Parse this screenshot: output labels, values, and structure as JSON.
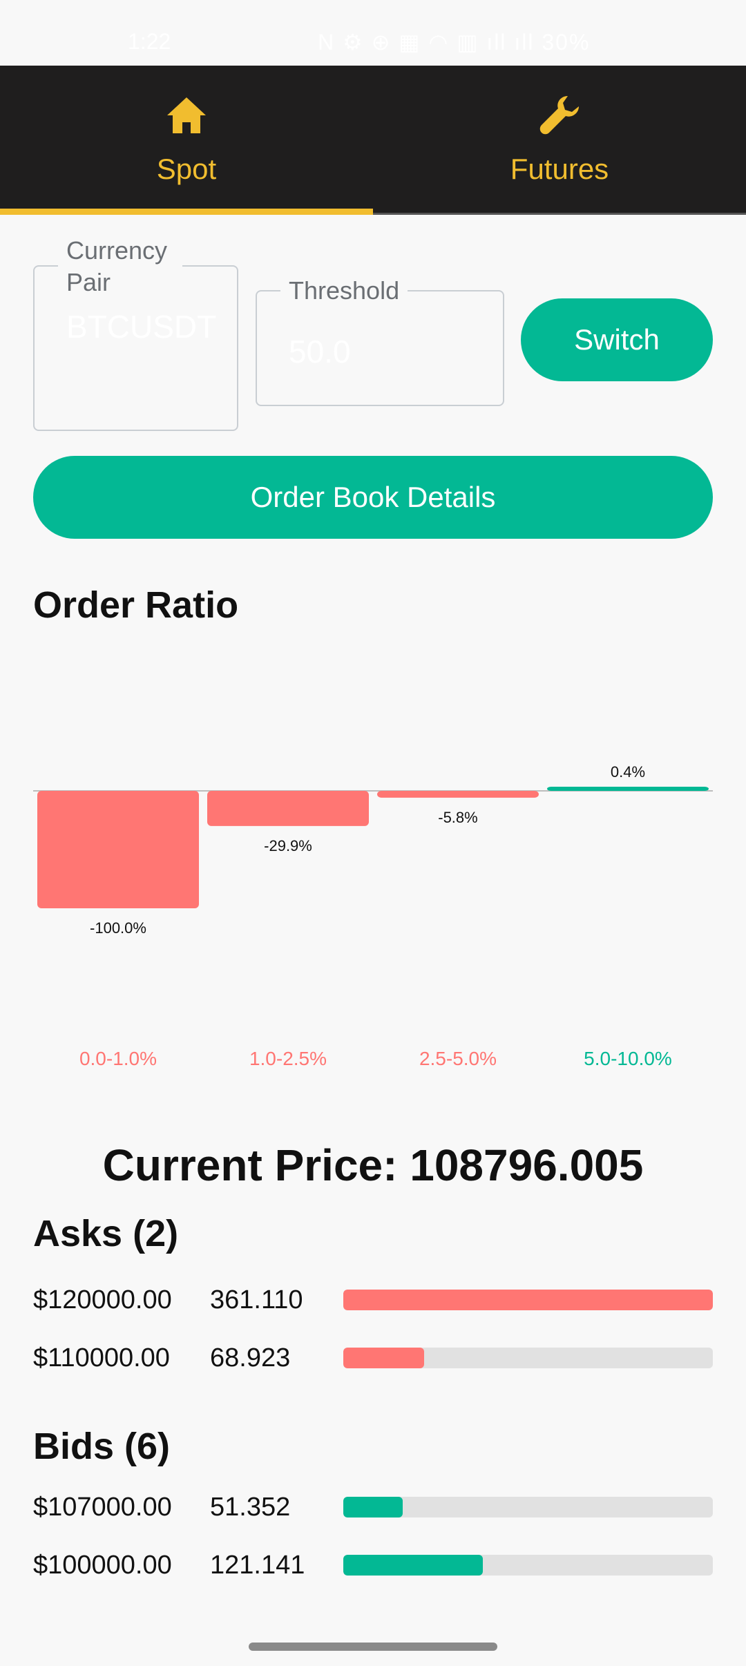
{
  "status_bar": {
    "time": "1:22",
    "indicators": "N ⚙ ⊕ ▦ ◠ ▥ ıll ıll 30%"
  },
  "tabs": [
    {
      "label": "Spot",
      "icon": "home-icon",
      "selected": true
    },
    {
      "label": "Futures",
      "icon": "wrench-icon",
      "selected": false
    }
  ],
  "form": {
    "currency_pair": {
      "label": "Currency Pair",
      "value": "BTCUSDT"
    },
    "threshold": {
      "label": "Threshold",
      "value": "50.0"
    },
    "switch_label": "Switch",
    "order_book_label": "Order Book Details"
  },
  "order_ratio": {
    "title": "Order Ratio"
  },
  "chart_data": {
    "type": "bar",
    "categories": [
      "0.0-1.0%",
      "1.0-2.5%",
      "2.5-5.0%",
      "5.0-10.0%"
    ],
    "values": [
      -100.0,
      -29.9,
      -5.8,
      0.4
    ],
    "value_labels": [
      "-100.0%",
      "-29.9%",
      "-5.8%",
      "0.4%"
    ],
    "ylim": [
      -100,
      100
    ],
    "grid": false,
    "colors": {
      "negative": "#ff7673",
      "positive": "#03b894",
      "zero_line": "#bdbdbd"
    }
  },
  "current_price": {
    "text": "Current Price: 108796.005"
  },
  "asks": {
    "title": "Asks (2)",
    "rows": [
      {
        "price": "$120000.00",
        "qty": "361.110",
        "fraction": 1.0
      },
      {
        "price": "$110000.00",
        "qty": "68.923",
        "fraction": 0.218
      }
    ]
  },
  "bids": {
    "title": "Bids (6)",
    "rows": [
      {
        "price": "$107000.00",
        "qty": "51.352",
        "fraction": 0.16
      },
      {
        "price": "$100000.00",
        "qty": "121.141",
        "fraction": 0.377
      }
    ]
  },
  "colors": {
    "accent": "#f1bd2f",
    "tab_bar": "#1f1e1e",
    "button": "#03b894",
    "ask": "#ff7673",
    "bid": "#03b894"
  }
}
